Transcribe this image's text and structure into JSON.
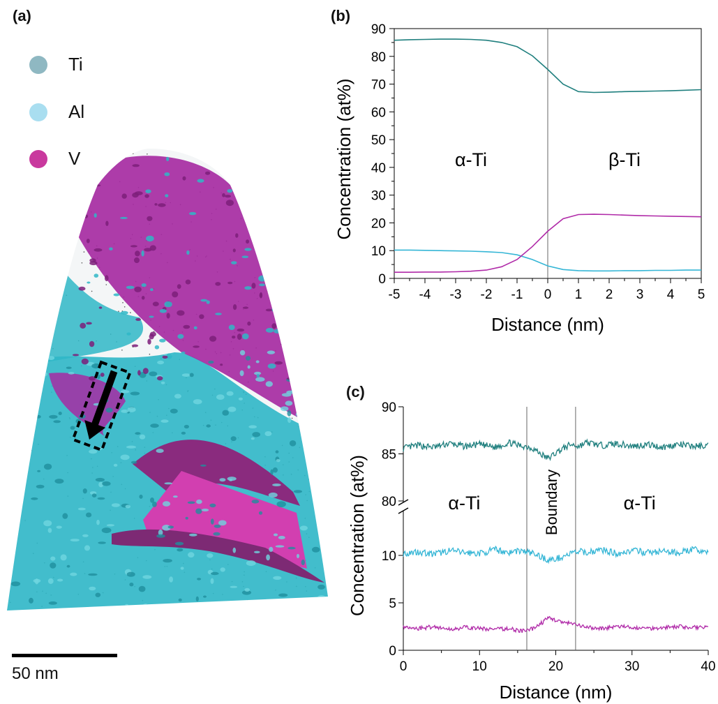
{
  "panels": {
    "a": "(a)",
    "b": "(b)",
    "c": "(c)"
  },
  "legend": [
    {
      "label": "Ti",
      "color": "#8fb8c2"
    },
    {
      "label": "Al",
      "color": "#a9def0"
    },
    {
      "label": "V",
      "color": "#c9399e"
    }
  ],
  "scale_bar": {
    "label": "50 nm"
  },
  "colors": {
    "ti": "#1f7f7e",
    "al": "#35b6d6",
    "v": "#b02aa8",
    "render_cyan": "#2fb7c7",
    "render_magenta": "#a62ba2"
  },
  "chart_data": [
    {
      "type": "line",
      "panel": "(b)",
      "xlabel": "Distance (nm)",
      "ylabel": "Concentration (at%)",
      "xlim": [
        -5,
        5
      ],
      "ylim": [
        0,
        90
      ],
      "xticks": [
        "-5",
        "-4",
        "-3",
        "-2",
        "-1",
        "0",
        "1",
        "2",
        "3",
        "4",
        "5"
      ],
      "yticks": [
        "0",
        "10",
        "20",
        "30",
        "40",
        "50",
        "60",
        "70",
        "80",
        "90"
      ],
      "vline": 0,
      "annotations": [
        {
          "text": "α-Ti",
          "x": -2.5,
          "y": 43
        },
        {
          "text": "β-Ti",
          "x": 2.5,
          "y": 43
        }
      ],
      "x": [
        -5,
        -4.5,
        -4,
        -3.5,
        -3,
        -2.5,
        -2,
        -1.5,
        -1,
        -0.5,
        0,
        0.5,
        1,
        1.5,
        2,
        2.5,
        3,
        3.5,
        4,
        4.5,
        5
      ],
      "series": [
        {
          "key": "ti",
          "values": [
            85.8,
            86.0,
            86.1,
            86.2,
            86.2,
            86.1,
            85.8,
            85.0,
            83.5,
            80.2,
            75.3,
            70.0,
            67.3,
            67.0,
            67.1,
            67.3,
            67.4,
            67.5,
            67.6,
            67.8,
            68.0
          ]
        },
        {
          "key": "al",
          "values": [
            10.2,
            10.2,
            10.1,
            10.0,
            9.9,
            9.8,
            9.6,
            9.3,
            8.5,
            6.8,
            4.5,
            3.2,
            2.8,
            2.7,
            2.7,
            2.8,
            2.8,
            2.9,
            2.9,
            3.0,
            3.0
          ]
        },
        {
          "key": "v",
          "values": [
            2.2,
            2.2,
            2.3,
            2.3,
            2.4,
            2.6,
            3.0,
            4.2,
            6.8,
            11.5,
            17.0,
            21.5,
            23.0,
            23.1,
            23.0,
            22.8,
            22.6,
            22.5,
            22.4,
            22.3,
            22.2
          ]
        }
      ]
    },
    {
      "type": "line",
      "panel": "(c)",
      "xlabel": "Distance (nm)",
      "ylabel": "Concentration (at%)",
      "xlim": [
        0,
        40
      ],
      "xticks": [
        "0",
        "10",
        "20",
        "30",
        "40"
      ],
      "yticks_lower": [
        "0",
        "5",
        "10"
      ],
      "yticks_upper": [
        "80",
        "85",
        "90"
      ],
      "axis_break": true,
      "vlines": [
        16.2,
        22.6
      ],
      "annotations": [
        {
          "text": "α-Ti",
          "x": 8
        },
        {
          "text": "Boundary",
          "x": 19.4
        },
        {
          "text": "α-Ti",
          "x": 31
        }
      ],
      "x": [
        0,
        2,
        4,
        6,
        8,
        10,
        12,
        14,
        15,
        16,
        17,
        18,
        19,
        20,
        21,
        22,
        23,
        24,
        26,
        28,
        30,
        32,
        34,
        36,
        38,
        40
      ],
      "series": [
        {
          "key": "ti",
          "values": [
            85.6,
            85.9,
            85.7,
            86.1,
            85.8,
            86.0,
            85.7,
            86.2,
            85.9,
            85.8,
            85.6,
            85.0,
            84.5,
            85.1,
            85.6,
            86.0,
            85.8,
            86.2,
            85.9,
            86.1,
            85.8,
            86.0,
            85.7,
            86.0,
            85.8,
            85.9
          ]
        },
        {
          "key": "al",
          "values": [
            10.2,
            10.4,
            10.1,
            10.5,
            10.3,
            10.2,
            10.6,
            10.3,
            10.5,
            10.4,
            10.2,
            9.9,
            9.5,
            9.6,
            9.9,
            10.2,
            10.4,
            10.3,
            10.6,
            10.2,
            10.5,
            10.3,
            10.4,
            10.3,
            10.6,
            10.4
          ]
        },
        {
          "key": "v",
          "values": [
            2.4,
            2.3,
            2.5,
            2.2,
            2.4,
            2.3,
            2.2,
            2.3,
            2.1,
            2.0,
            2.3,
            2.8,
            3.4,
            3.2,
            2.9,
            2.8,
            2.6,
            2.4,
            2.3,
            2.5,
            2.4,
            2.3,
            2.4,
            2.5,
            2.4,
            2.5
          ]
        }
      ]
    }
  ]
}
